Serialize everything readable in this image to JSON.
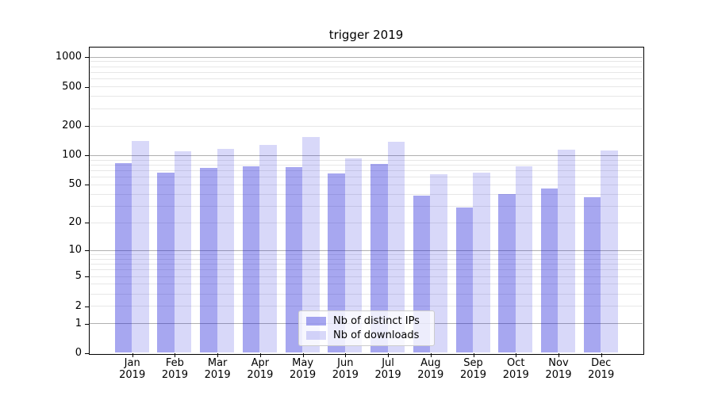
{
  "title": "trigger 2019",
  "chart_data": {
    "type": "bar",
    "title": "trigger 2019",
    "categories": [
      "Jan 2019",
      "Feb 2019",
      "Mar 2019",
      "Apr 2019",
      "May 2019",
      "Jun 2019",
      "Jul 2019",
      "Aug 2019",
      "Sep 2019",
      "Oct 2019",
      "Nov 2019",
      "Dec 2019"
    ],
    "month_labels": [
      "Jan",
      "Feb",
      "Mar",
      "Apr",
      "May",
      "Jun",
      "Jul",
      "Aug",
      "Sep",
      "Oct",
      "Nov",
      "Dec"
    ],
    "year_label": "2019",
    "series": [
      {
        "name": "Nb of distinct IPs",
        "color": "rgba(15,15,215,0.37)",
        "color_hex_on_white": "#a8a8f2",
        "values": [
          82,
          66,
          74,
          77,
          76,
          65,
          81,
          38,
          29,
          40,
          45,
          37
        ]
      },
      {
        "name": "Nb of downloads",
        "color": "rgba(15,15,215,0.16)",
        "color_hex_on_white": "#d9d9f8",
        "values": [
          140,
          110,
          116,
          128,
          154,
          93,
          137,
          64,
          66,
          77,
          113,
          111
        ]
      }
    ],
    "y_axis": {
      "scale": "symlog ln(1+x)",
      "tick_labels": [
        "1000",
        "500",
        "200",
        "100",
        "50",
        "20",
        "10",
        "5",
        "2",
        "1",
        "0"
      ],
      "tick_values": [
        1000,
        500,
        200,
        100,
        50,
        20,
        10,
        5,
        2,
        1,
        0
      ],
      "minor_grid_values": [
        2,
        3,
        4,
        5,
        6,
        7,
        8,
        9,
        20,
        30,
        40,
        50,
        60,
        70,
        80,
        90,
        200,
        300,
        400,
        500,
        600,
        700,
        800,
        900
      ],
      "major_grid_values": [
        1,
        10,
        100,
        1000
      ],
      "ylim": [
        0,
        1250
      ]
    },
    "xlabel": "",
    "ylabel": "",
    "legend": {
      "position": "lower center",
      "entries": [
        "Nb of distinct IPs",
        "Nb of downloads"
      ]
    },
    "grid": true,
    "colors": {
      "major_grid": "#b0b0b0",
      "minor_grid": "#e7e7e7",
      "spine": "#000000",
      "background": "#ffffff"
    }
  }
}
